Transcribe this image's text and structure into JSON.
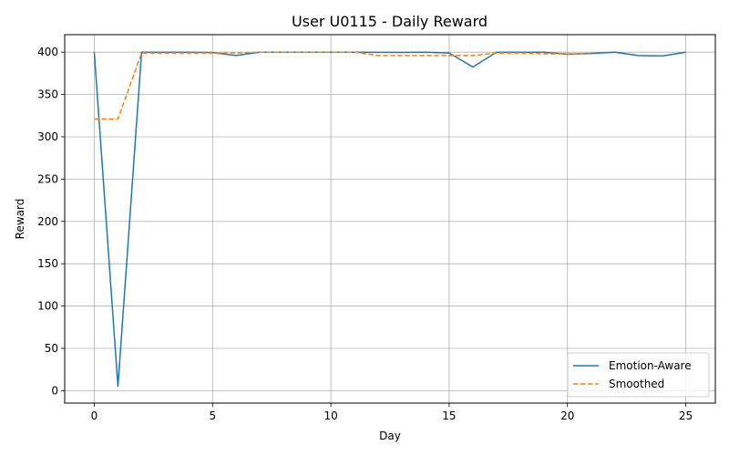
{
  "chart_data": {
    "type": "line",
    "title": "User U0115 - Daily Reward",
    "xlabel": "Day",
    "ylabel": "Reward",
    "xlim": [
      -1.25,
      26.25
    ],
    "ylim": [
      -14.7,
      420.7
    ],
    "xticks": [
      0,
      5,
      10,
      15,
      20,
      25
    ],
    "yticks": [
      0,
      50,
      100,
      150,
      200,
      250,
      300,
      350,
      400
    ],
    "grid": true,
    "legend_position": "lower-right",
    "series": [
      {
        "name": "Emotion-Aware",
        "color": "#1f77b4",
        "style": "solid",
        "x": [
          0,
          1,
          2,
          3,
          4,
          5,
          6,
          7,
          8,
          9,
          10,
          11,
          12,
          13,
          14,
          15,
          16,
          17,
          18,
          19,
          20,
          21,
          22,
          23,
          24,
          25
        ],
        "values": [
          400,
          5,
          400,
          400,
          400,
          399.5,
          396,
          400,
          400,
          400,
          400,
          400,
          399.8,
          399.7,
          400,
          399,
          382.5,
          400,
          400,
          400,
          397.5,
          398.5,
          400,
          396,
          395.5,
          400
        ]
      },
      {
        "name": "Smoothed",
        "color": "#ff7f0e",
        "style": "dashed",
        "x": [
          0,
          1,
          2,
          3,
          4,
          5,
          6,
          7,
          8,
          9,
          10,
          11,
          12,
          13,
          14,
          15,
          16,
          17,
          18,
          19,
          20,
          21
        ],
        "values": [
          321,
          321,
          399,
          399,
          399,
          399,
          399,
          400,
          400,
          400,
          400,
          400,
          396,
          396,
          396,
          396,
          396,
          399,
          399,
          398,
          398,
          398
        ]
      }
    ]
  }
}
